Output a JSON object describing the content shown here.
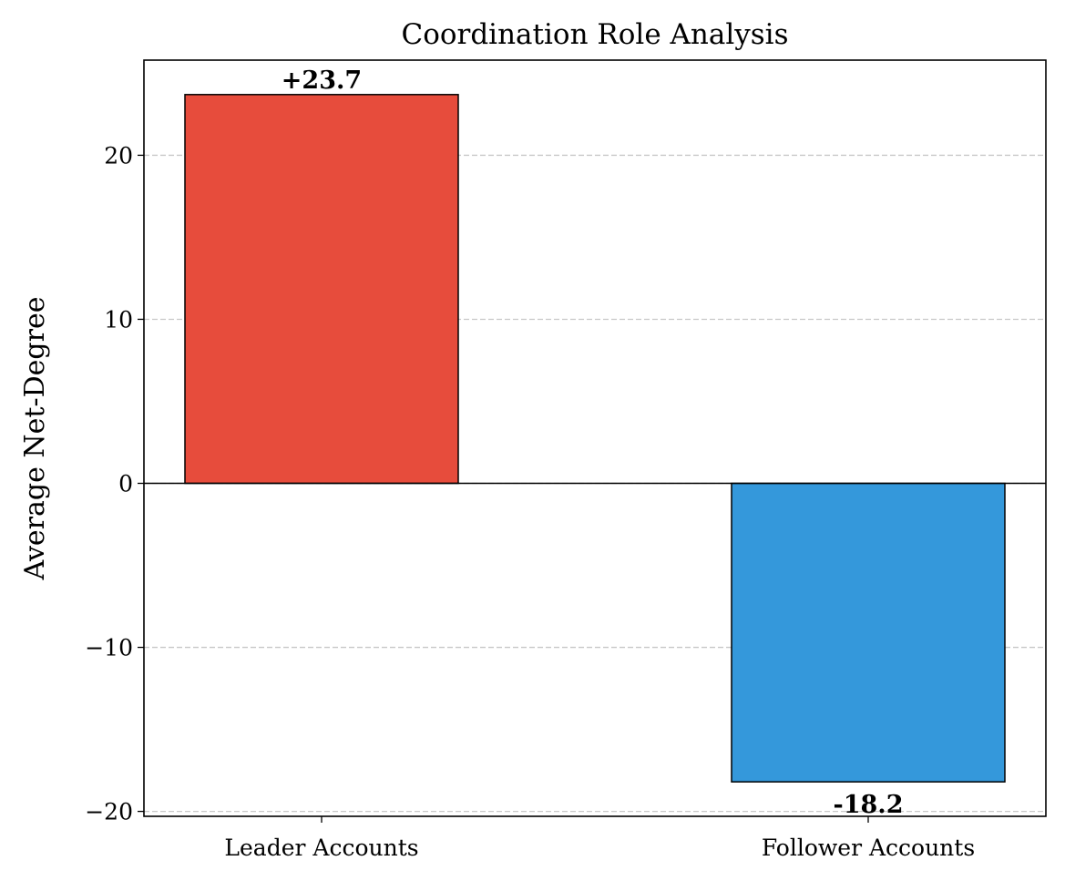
{
  "chart_data": {
    "type": "bar",
    "title": "Coordination Role Analysis",
    "y_label": "Average Net-Degree",
    "categories": [
      "Leader Accounts",
      "Follower Accounts"
    ],
    "values": [
      23.7,
      -18.2
    ],
    "value_labels": [
      "+23.7",
      "-18.2"
    ],
    "colors": [
      "#e74c3c",
      "#3498db"
    ],
    "ylim": [
      -20.3,
      25.8
    ],
    "yticks": [
      {
        "value": -20,
        "label": "−20"
      },
      {
        "value": -10,
        "label": "−10"
      },
      0,
      10,
      20
    ],
    "grid": true
  }
}
